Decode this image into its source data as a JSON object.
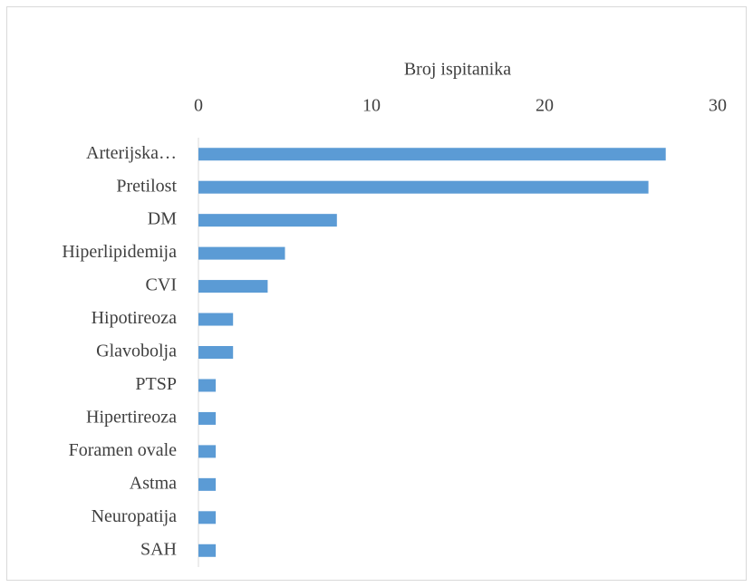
{
  "chart_data": {
    "type": "bar",
    "orientation": "horizontal",
    "x_label": "Broj ispitanika",
    "categories": [
      "Arterijska…",
      "Pretilost",
      "DM",
      "Hiperlipidemija",
      "CVI",
      "Hipotireoza",
      "Glavobolja",
      "PTSP",
      "Hipertireoza",
      "Foramen ovale",
      "Astma",
      "Neuropatija",
      "SAH"
    ],
    "values": [
      27,
      26,
      8,
      5,
      4,
      2,
      2,
      1,
      1,
      1,
      1,
      1,
      1
    ],
    "color": "#5b9bd5",
    "xlim": [
      0,
      30
    ],
    "xticks": [
      0,
      10,
      20,
      30
    ],
    "grid": false
  }
}
